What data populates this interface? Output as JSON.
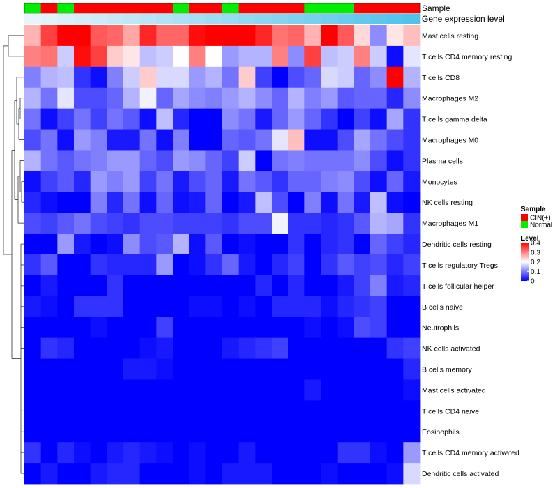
{
  "chart_data": {
    "type": "heatmap",
    "title": "",
    "columns": 24,
    "sample_track": {
      "label": "Sample",
      "groups": [
        "Normal",
        "CIN(+)",
        "Normal",
        "CIN(+)",
        "CIN(+)",
        "CIN(+)",
        "CIN(+)",
        "CIN(+)",
        "CIN(+)",
        "Normal",
        "CIN(+)",
        "CIN(+)",
        "Normal",
        "CIN(+)",
        "CIN(+)",
        "CIN(+)",
        "CIN(+)",
        "Normal",
        "Normal",
        "Normal",
        "CIN(+)",
        "CIN(+)",
        "CIN(+)",
        "CIN(+)"
      ]
    },
    "expression_track": {
      "label": "Gene expression level",
      "values": [
        0.0,
        0.04,
        0.09,
        0.13,
        0.17,
        0.22,
        0.26,
        0.3,
        0.35,
        0.39,
        0.43,
        0.48,
        0.52,
        0.57,
        0.61,
        0.65,
        0.7,
        0.74,
        0.78,
        0.83,
        0.87,
        0.91,
        0.96,
        1.0
      ]
    },
    "rows": [
      "Mast cells resting",
      "T cells CD4 memory resting",
      "T cells CD8",
      "Macrophages M2",
      "T cells gamma delta",
      "Macrophages M0",
      "Plasma cells",
      "Monocytes",
      "NK cells resting",
      "Macrophages M1",
      "Dendritic cells resting",
      "T cells regulatory  Tregs",
      "T cells follicular helper",
      "B cells naive",
      "Neutrophils",
      "NK cells activated",
      "B cells memory",
      "Mast cells activated",
      "T cells CD4 naive",
      "Eosinophils",
      "T cells CD4 memory activated",
      "Dendritic cells activated"
    ],
    "values": [
      [
        0.26,
        0.35,
        0.4,
        0.4,
        0.33,
        0.32,
        0.27,
        0.37,
        0.32,
        0.32,
        0.39,
        0.4,
        0.4,
        0.4,
        0.37,
        0.31,
        0.32,
        0.26,
        0.4,
        0.33,
        0.23,
        0.11,
        0.22,
        0.25
      ],
      [
        0.3,
        0.31,
        0.16,
        0.39,
        0.35,
        0.24,
        0.22,
        0.15,
        0.16,
        0.2,
        0.3,
        0.2,
        0.12,
        0.14,
        0.14,
        0.3,
        0.11,
        0.35,
        0.15,
        0.16,
        0.3,
        0.16,
        0.01,
        0.18
      ],
      [
        0.1,
        0.14,
        0.15,
        0.04,
        0.01,
        0.1,
        0.16,
        0.24,
        0.17,
        0.17,
        0.12,
        0.14,
        0.09,
        0.24,
        0.05,
        0.0,
        0.06,
        0.08,
        0.17,
        0.16,
        0.08,
        0.11,
        0.4,
        0.14
      ],
      [
        0.14,
        0.09,
        0.18,
        0.06,
        0.06,
        0.08,
        0.14,
        0.19,
        0.08,
        0.13,
        0.11,
        0.1,
        0.12,
        0.14,
        0.11,
        0.08,
        0.14,
        0.1,
        0.12,
        0.07,
        0.08,
        0.08,
        0.03,
        0.11
      ],
      [
        0.09,
        0.01,
        0.05,
        0.09,
        0.05,
        0.09,
        0.07,
        0.01,
        0.15,
        0.03,
        0.0,
        0.0,
        0.11,
        0.09,
        0.02,
        0.08,
        0.12,
        0.08,
        0.04,
        0.0,
        0.05,
        0.01,
        0.13,
        0.04
      ],
      [
        0.06,
        0.09,
        0.01,
        0.12,
        0.1,
        0.02,
        0.02,
        0.09,
        0.01,
        0.1,
        0.0,
        0.0,
        0.08,
        0.07,
        0.09,
        0.18,
        0.25,
        0.01,
        0.01,
        0.06,
        0.13,
        0.09,
        0.06,
        0.04
      ],
      [
        0.14,
        0.09,
        0.07,
        0.09,
        0.1,
        0.12,
        0.12,
        0.08,
        0.06,
        0.12,
        0.11,
        0.08,
        0.05,
        0.16,
        0.0,
        0.09,
        0.1,
        0.09,
        0.09,
        0.09,
        0.11,
        0.06,
        0.01,
        0.04
      ],
      [
        0.01,
        0.05,
        0.07,
        0.03,
        0.12,
        0.1,
        0.12,
        0.05,
        0.09,
        0.02,
        0.06,
        0.08,
        0.02,
        0.09,
        0.07,
        0.04,
        0.08,
        0.08,
        0.1,
        0.11,
        0.06,
        0.01,
        0.08,
        0.02
      ],
      [
        0.03,
        0.01,
        0.0,
        0.0,
        0.1,
        0.03,
        0.09,
        0.01,
        0.08,
        0.01,
        0.02,
        0.08,
        0.0,
        0.02,
        0.15,
        0.06,
        0.0,
        0.1,
        0.01,
        0.09,
        0.02,
        0.15,
        0.01,
        0.0
      ],
      [
        0.06,
        0.05,
        0.07,
        0.09,
        0.06,
        0.05,
        0.04,
        0.06,
        0.06,
        0.05,
        0.05,
        0.05,
        0.04,
        0.06,
        0.06,
        0.19,
        0.04,
        0.04,
        0.03,
        0.04,
        0.07,
        0.14,
        0.13,
        0.04
      ],
      [
        0.0,
        0.0,
        0.12,
        0.02,
        0.0,
        0.01,
        0.11,
        0.06,
        0.07,
        0.14,
        0.01,
        0.07,
        0.0,
        0.01,
        0.0,
        0.0,
        0.04,
        0.0,
        0.03,
        0.04,
        0.0,
        0.08,
        0.05,
        0.03
      ],
      [
        0.04,
        0.07,
        0.0,
        0.0,
        0.04,
        0.03,
        0.03,
        0.03,
        0.12,
        0.0,
        0.01,
        0.04,
        0.08,
        0.02,
        0.0,
        0.03,
        0.05,
        0.0,
        0.04,
        0.07,
        0.05,
        0.06,
        0.03,
        0.05
      ],
      [
        0.0,
        0.02,
        0.0,
        0.0,
        0.0,
        0.04,
        0.0,
        0.0,
        0.0,
        0.0,
        0.0,
        0.0,
        0.0,
        0.0,
        0.03,
        0.0,
        0.03,
        0.0,
        0.0,
        0.02,
        0.05,
        0.1,
        0.02,
        0.03
      ],
      [
        0.02,
        0.01,
        0.0,
        0.04,
        0.04,
        0.04,
        0.0,
        0.0,
        0.0,
        0.0,
        0.01,
        0.01,
        0.0,
        0.01,
        0.0,
        0.03,
        0.03,
        0.03,
        0.01,
        0.03,
        0.04,
        0.05,
        0.0,
        0.0
      ],
      [
        0.0,
        0.0,
        0.0,
        0.0,
        0.01,
        0.0,
        0.0,
        0.0,
        0.05,
        0.0,
        0.0,
        0.0,
        0.0,
        0.0,
        0.0,
        0.0,
        0.0,
        0.01,
        0.0,
        0.01,
        0.06,
        0.05,
        0.0,
        0.0
      ],
      [
        0.0,
        0.04,
        0.03,
        0.0,
        0.0,
        0.0,
        0.0,
        0.01,
        0.02,
        0.0,
        0.0,
        0.0,
        0.02,
        0.03,
        0.04,
        0.05,
        0.0,
        0.0,
        0.0,
        0.0,
        0.0,
        0.0,
        0.04,
        0.05
      ],
      [
        0.0,
        0.0,
        0.0,
        0.0,
        0.0,
        0.0,
        0.02,
        0.02,
        0.01,
        0.0,
        0.0,
        0.0,
        0.0,
        0.0,
        0.0,
        0.0,
        0.0,
        0.0,
        0.0,
        0.0,
        0.0,
        0.0,
        0.0,
        0.03
      ],
      [
        0.0,
        0.0,
        0.0,
        0.0,
        0.0,
        0.0,
        0.0,
        0.0,
        0.0,
        0.0,
        0.0,
        0.0,
        0.0,
        0.0,
        0.0,
        0.0,
        0.0,
        0.02,
        0.0,
        0.0,
        0.0,
        0.0,
        0.0,
        0.01
      ],
      [
        0.0,
        0.0,
        0.0,
        0.0,
        0.0,
        0.0,
        0.0,
        0.0,
        0.0,
        0.0,
        0.0,
        0.0,
        0.0,
        0.0,
        0.0,
        0.0,
        0.0,
        0.0,
        0.0,
        0.0,
        0.0,
        0.0,
        0.0,
        0.0
      ],
      [
        0.0,
        0.0,
        0.0,
        0.0,
        0.0,
        0.0,
        0.0,
        0.0,
        0.0,
        0.0,
        0.0,
        0.0,
        0.0,
        0.0,
        0.0,
        0.0,
        0.0,
        0.0,
        0.0,
        0.0,
        0.0,
        0.0,
        0.0,
        0.0
      ],
      [
        0.04,
        0.0,
        0.03,
        0.01,
        0.0,
        0.02,
        0.03,
        0.02,
        0.01,
        0.0,
        0.01,
        0.0,
        0.0,
        0.02,
        0.0,
        0.0,
        0.0,
        0.0,
        0.0,
        0.04,
        0.04,
        0.01,
        0.0,
        0.12
      ],
      [
        0.0,
        0.02,
        0.0,
        0.0,
        0.02,
        0.03,
        0.03,
        0.0,
        0.0,
        0.0,
        0.01,
        0.0,
        0.02,
        0.02,
        0.02,
        0.0,
        0.0,
        0.0,
        0.01,
        0.0,
        0.0,
        0.0,
        0.01,
        0.17
      ]
    ],
    "color_scale": {
      "min": 0,
      "max": 0.4,
      "low": "#0000ff",
      "mid": "#ffffff",
      "high": "#ff0000",
      "midpoint": 0.2
    },
    "legend": {
      "sample_title": "Sample",
      "sample_entries": [
        {
          "label": "CIN(+)",
          "color": "#ff0000"
        },
        {
          "label": "Normal",
          "color": "#00ee00"
        }
      ],
      "level_title": "Level",
      "level_ticks": [
        {
          "value": 0.4,
          "label": "0.4"
        },
        {
          "value": 0.3,
          "label": "0.3"
        },
        {
          "value": 0.2,
          "label": "0.2"
        },
        {
          "value": 0.1,
          "label": "0.1"
        },
        {
          "value": 0,
          "label": "0"
        }
      ],
      "placement": "right"
    },
    "row_dendrogram": true,
    "expression_track_colors": {
      "low": "#e8f4fa",
      "high": "#4fc3ea"
    }
  }
}
